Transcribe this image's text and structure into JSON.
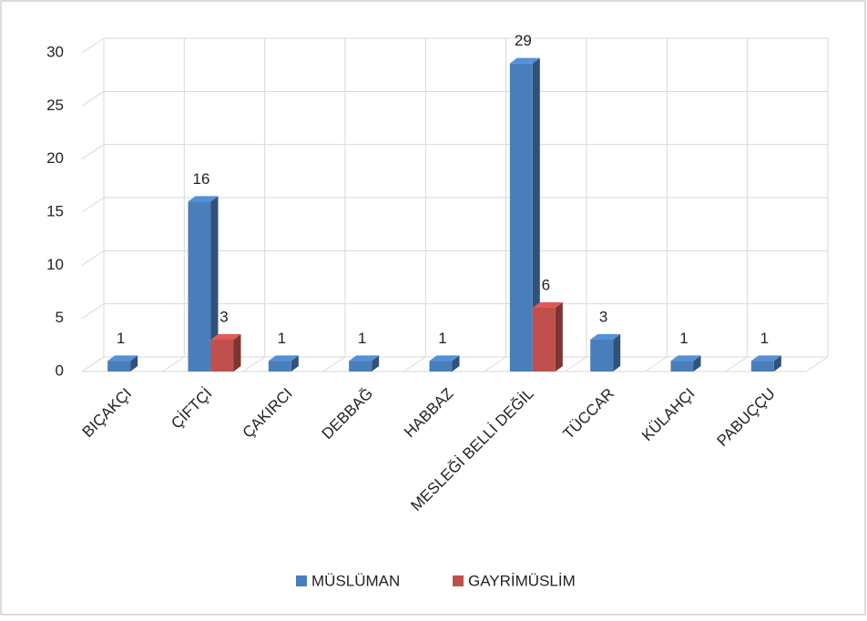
{
  "chart_data": {
    "type": "bar3d",
    "categories": [
      "BIÇAKÇI",
      "ÇİFTÇİ",
      "ÇAKIRCI",
      "DEBBAĞ",
      "HABBAZ",
      "MESLEĞİ BELLİ DEĞİL",
      "TÜCCAR",
      "KÜLAHÇI",
      "PABUÇÇU"
    ],
    "series": [
      {
        "name": "MÜSLÜMAN",
        "color": "#4a7ebb",
        "values": [
          1,
          16,
          1,
          1,
          1,
          29,
          3,
          1,
          1
        ]
      },
      {
        "name": "GAYRİMÜSLİM",
        "color": "#c0504d",
        "values": [
          null,
          3,
          null,
          null,
          null,
          6,
          null,
          null,
          null
        ]
      }
    ],
    "ylim": [
      0,
      30
    ],
    "yticks": [
      0,
      5,
      10,
      15,
      20,
      25,
      30
    ],
    "grid": true,
    "legend": "bottom"
  }
}
